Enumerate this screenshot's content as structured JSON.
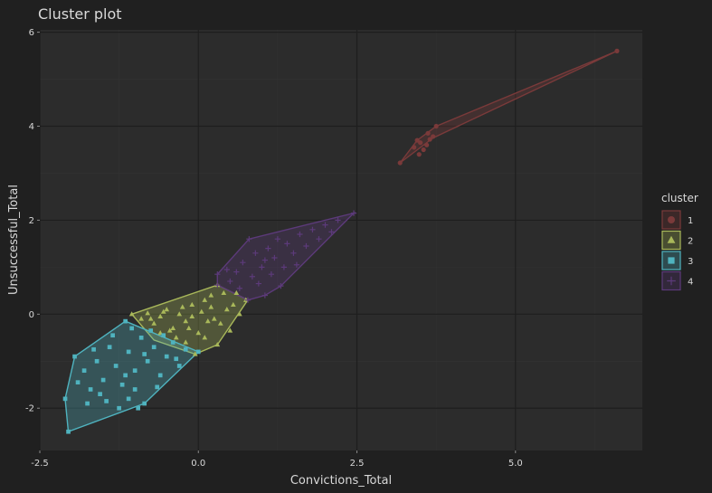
{
  "chart_data": {
    "type": "scatter",
    "title": "Cluster plot",
    "xlabel": "Convictions_Total",
    "ylabel": "Unsuccessful_Total",
    "xlim": [
      -2.5,
      7
    ],
    "ylim": [
      -2.9,
      6.05
    ],
    "x_ticks": [
      -2.5,
      0,
      2.5,
      5
    ],
    "x_tick_labels": [
      "-2.5",
      "0.0",
      "2.5",
      "5.0"
    ],
    "y_ticks": [
      -2,
      0,
      2,
      4,
      6
    ],
    "y_tick_labels": [
      "-2",
      "0",
      "2",
      "4",
      "6"
    ],
    "grid": true,
    "legend": {
      "title": "cluster",
      "position": "right",
      "entries": [
        "1",
        "2",
        "3",
        "4"
      ]
    },
    "series": [
      {
        "name": "1",
        "color": "#7a3a3a",
        "marker": "circle",
        "hull": [
          [
            3.18,
            3.22
          ],
          [
            3.45,
            3.7
          ],
          [
            3.75,
            4.0
          ],
          [
            6.6,
            5.6
          ],
          [
            3.7,
            3.75
          ]
        ],
        "points": [
          [
            3.18,
            3.22
          ],
          [
            3.45,
            3.7
          ],
          [
            3.5,
            3.65
          ],
          [
            3.55,
            3.5
          ],
          [
            3.6,
            3.6
          ],
          [
            3.65,
            3.72
          ],
          [
            3.75,
            4.0
          ],
          [
            3.7,
            3.78
          ],
          [
            3.62,
            3.85
          ],
          [
            6.6,
            5.6
          ],
          [
            3.4,
            3.55
          ],
          [
            3.48,
            3.4
          ]
        ]
      },
      {
        "name": "2",
        "color": "#a9b85a",
        "marker": "triangle",
        "hull": [
          [
            -1.05,
            0.0
          ],
          [
            0.3,
            0.62
          ],
          [
            0.78,
            0.3
          ],
          [
            0.3,
            -0.65
          ],
          [
            -0.05,
            -0.85
          ],
          [
            -0.7,
            -0.55
          ]
        ],
        "points": [
          [
            -1.05,
            0.0
          ],
          [
            -0.9,
            -0.1
          ],
          [
            -0.8,
            0.02
          ],
          [
            -0.7,
            -0.2
          ],
          [
            -0.6,
            -0.05
          ],
          [
            -0.5,
            0.1
          ],
          [
            -0.4,
            -0.3
          ],
          [
            -0.3,
            0.0
          ],
          [
            -0.2,
            -0.15
          ],
          [
            -0.1,
            0.2
          ],
          [
            0.0,
            -0.4
          ],
          [
            0.1,
            0.3
          ],
          [
            0.2,
            0.4
          ],
          [
            0.3,
            0.62
          ],
          [
            0.35,
            -0.2
          ],
          [
            0.45,
            0.1
          ],
          [
            0.55,
            0.2
          ],
          [
            0.65,
            0.0
          ],
          [
            0.75,
            0.3
          ],
          [
            0.3,
            -0.65
          ],
          [
            0.1,
            -0.5
          ],
          [
            -0.05,
            -0.85
          ],
          [
            -0.2,
            -0.6
          ],
          [
            -0.35,
            -0.5
          ],
          [
            -0.6,
            -0.4
          ],
          [
            -0.15,
            -0.3
          ],
          [
            0.05,
            0.05
          ],
          [
            0.25,
            -0.1
          ],
          [
            -0.45,
            -0.35
          ],
          [
            0.15,
            -0.15
          ],
          [
            -0.25,
            0.15
          ],
          [
            0.4,
            0.45
          ],
          [
            0.5,
            -0.35
          ],
          [
            -0.55,
            0.05
          ],
          [
            -0.75,
            -0.1
          ],
          [
            0.6,
            0.45
          ],
          [
            -0.1,
            -0.05
          ],
          [
            0.2,
            0.15
          ]
        ]
      },
      {
        "name": "3",
        "color": "#4fb3bf",
        "marker": "square",
        "hull": [
          [
            -2.05,
            -2.5
          ],
          [
            -2.1,
            -1.8
          ],
          [
            -1.95,
            -0.9
          ],
          [
            -1.15,
            -0.15
          ],
          [
            0.0,
            -0.8
          ],
          [
            -0.85,
            -1.9
          ]
        ],
        "points": [
          [
            -2.05,
            -2.5
          ],
          [
            -2.1,
            -1.8
          ],
          [
            -1.95,
            -0.9
          ],
          [
            -1.15,
            -0.15
          ],
          [
            0.0,
            -0.8
          ],
          [
            -0.85,
            -1.9
          ],
          [
            -1.8,
            -1.2
          ],
          [
            -1.7,
            -1.6
          ],
          [
            -1.6,
            -1.0
          ],
          [
            -1.5,
            -1.4
          ],
          [
            -1.4,
            -0.7
          ],
          [
            -1.3,
            -1.1
          ],
          [
            -1.2,
            -1.5
          ],
          [
            -1.1,
            -0.8
          ],
          [
            -1.0,
            -1.2
          ],
          [
            -0.9,
            -0.5
          ],
          [
            -0.8,
            -1.0
          ],
          [
            -0.7,
            -0.7
          ],
          [
            -0.6,
            -1.3
          ],
          [
            -0.5,
            -0.9
          ],
          [
            -0.4,
            -0.6
          ],
          [
            -0.3,
            -1.1
          ],
          [
            -0.2,
            -0.75
          ],
          [
            -1.25,
            -2.0
          ],
          [
            -1.1,
            -1.8
          ],
          [
            -1.0,
            -1.6
          ],
          [
            -0.95,
            -2.0
          ],
          [
            -1.45,
            -1.85
          ],
          [
            -1.35,
            -0.45
          ],
          [
            -1.05,
            -0.3
          ],
          [
            -0.75,
            -0.35
          ],
          [
            -1.65,
            -0.75
          ],
          [
            -1.9,
            -1.45
          ],
          [
            -0.55,
            -0.45
          ],
          [
            -0.35,
            -0.95
          ],
          [
            -1.55,
            -1.7
          ],
          [
            -0.65,
            -1.55
          ],
          [
            -1.15,
            -1.3
          ],
          [
            -0.85,
            -0.85
          ],
          [
            -1.75,
            -1.9
          ]
        ]
      },
      {
        "name": "4",
        "color": "#5c3a7a",
        "marker": "plus",
        "hull": [
          [
            0.3,
            0.62
          ],
          [
            0.3,
            0.85
          ],
          [
            0.8,
            1.6
          ],
          [
            2.45,
            2.15
          ],
          [
            1.3,
            0.6
          ],
          [
            1.05,
            0.4
          ],
          [
            0.78,
            0.3
          ]
        ],
        "points": [
          [
            0.3,
            0.62
          ],
          [
            0.3,
            0.85
          ],
          [
            0.8,
            1.6
          ],
          [
            2.45,
            2.15
          ],
          [
            1.3,
            0.6
          ],
          [
            1.05,
            0.4
          ],
          [
            0.78,
            0.3
          ],
          [
            0.5,
            0.7
          ],
          [
            0.6,
            0.9
          ],
          [
            0.7,
            1.1
          ],
          [
            0.9,
            1.3
          ],
          [
            1.0,
            1.0
          ],
          [
            1.1,
            1.4
          ],
          [
            1.2,
            1.2
          ],
          [
            1.4,
            1.5
          ],
          [
            1.5,
            1.3
          ],
          [
            1.6,
            1.7
          ],
          [
            1.8,
            1.8
          ],
          [
            2.0,
            1.9
          ],
          [
            2.2,
            2.0
          ],
          [
            0.85,
            0.8
          ],
          [
            0.95,
            0.65
          ],
          [
            1.15,
            0.85
          ],
          [
            1.35,
            1.0
          ],
          [
            1.55,
            1.05
          ],
          [
            1.7,
            1.45
          ],
          [
            0.65,
            0.55
          ],
          [
            0.45,
            0.95
          ],
          [
            1.25,
            1.6
          ],
          [
            1.9,
            1.6
          ],
          [
            2.1,
            1.75
          ],
          [
            1.05,
            1.15
          ]
        ]
      }
    ]
  }
}
